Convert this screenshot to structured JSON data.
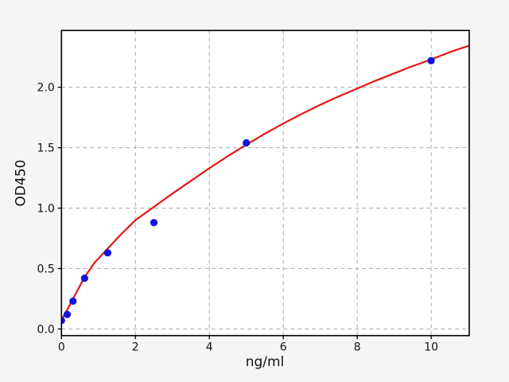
{
  "figure": {
    "background": "#f5f5f5",
    "plot_background": "#ffffff",
    "spine_color": "#000000",
    "grid_color": "#ababab",
    "tick_color": "#000000",
    "text_color": "#111111"
  },
  "chart_data": {
    "type": "scatter",
    "title": "",
    "xlabel": "ng/ml",
    "ylabel": "OD450",
    "xlim": [
      0,
      11.03
    ],
    "ylim": [
      -0.055,
      2.47
    ],
    "grid": "dashed",
    "legend_position": "none",
    "x_ticks": [
      0,
      2,
      4,
      6,
      8,
      10
    ],
    "x_tick_labels": [
      "0",
      "2",
      "4",
      "6",
      "8",
      "10"
    ],
    "y_ticks": [
      0.0,
      0.5,
      1.0,
      1.5,
      2.0
    ],
    "y_tick_labels": [
      "0.0",
      "0.5",
      "1.0",
      "1.5",
      "2.0"
    ],
    "series": [
      {
        "name": "standard-points",
        "type": "scatter",
        "marker": "circle",
        "color": "#1212dd",
        "x": [
          0,
          0.156,
          0.312,
          0.625,
          1.25,
          2.5,
          5,
          10
        ],
        "y": [
          0.07,
          0.12,
          0.23,
          0.42,
          0.63,
          0.88,
          1.54,
          2.22
        ]
      },
      {
        "name": "fit-curve",
        "type": "line",
        "color": "#e41616",
        "points": [
          [
            0,
            0.075
          ],
          [
            0.156,
            0.16
          ],
          [
            0.312,
            0.25
          ],
          [
            0.625,
            0.43
          ],
          [
            0.9,
            0.55
          ],
          [
            1.25,
            0.665
          ],
          [
            1.6,
            0.78
          ],
          [
            2,
            0.9
          ],
          [
            2.5,
            1.01
          ],
          [
            3,
            1.12
          ],
          [
            3.5,
            1.225
          ],
          [
            4,
            1.33
          ],
          [
            4.5,
            1.43
          ],
          [
            5,
            1.525
          ],
          [
            5.5,
            1.615
          ],
          [
            6,
            1.7
          ],
          [
            6.5,
            1.78
          ],
          [
            7,
            1.855
          ],
          [
            7.5,
            1.925
          ],
          [
            8,
            1.99
          ],
          [
            8.5,
            2.055
          ],
          [
            9,
            2.115
          ],
          [
            9.5,
            2.175
          ],
          [
            10,
            2.23
          ],
          [
            10.5,
            2.29
          ],
          [
            11.03,
            2.345
          ]
        ]
      }
    ]
  }
}
